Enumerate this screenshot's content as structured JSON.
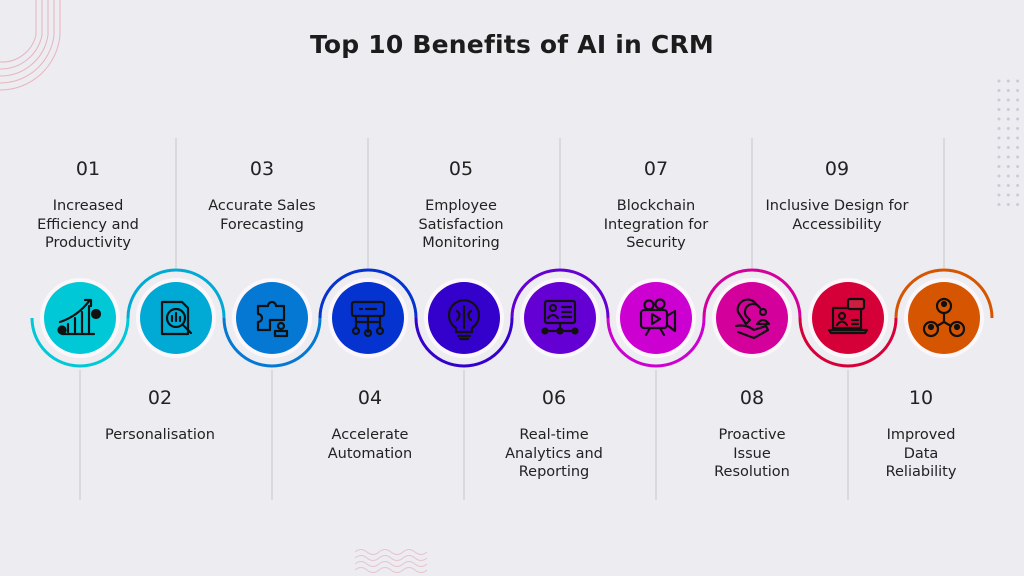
{
  "title": "Top 10 Benefits of AI in CRM",
  "items": [
    {
      "number": "01",
      "label": "Increased Efficiency and Productivity",
      "icon": "growth-chart-gears-icon",
      "color": "#00c8d6"
    },
    {
      "number": "02",
      "label": "Personalisation",
      "icon": "document-analysis-icon",
      "color": "#00aad4"
    },
    {
      "number": "03",
      "label": "Accurate Sales Forecasting",
      "icon": "puzzle-person-icon",
      "color": "#0478d2"
    },
    {
      "number": "04",
      "label": "Accelerate Automation",
      "icon": "network-device-icon",
      "color": "#0433cf"
    },
    {
      "number": "05",
      "label": "Employee Satisfaction Monitoring",
      "icon": "brain-bulb-icon",
      "color": "#3300cc"
    },
    {
      "number": "06",
      "label": "Real-time Analytics and Reporting",
      "icon": "profile-board-icon",
      "color": "#6400d4"
    },
    {
      "number": "07",
      "label": "Blockchain Integration for Security",
      "icon": "video-camera-icon",
      "color": "#cc00d0"
    },
    {
      "number": "08",
      "label": "Proactive Issue Resolution",
      "icon": "magnet-hand-icon",
      "color": "#d4009c"
    },
    {
      "number": "09",
      "label": "Inclusive Design for Accessibility",
      "icon": "laptop-chat-icon",
      "color": "#d60038"
    },
    {
      "number": "10",
      "label": "Improved Data Reliability",
      "icon": "people-network-icon",
      "color": "#d65500"
    }
  ]
}
